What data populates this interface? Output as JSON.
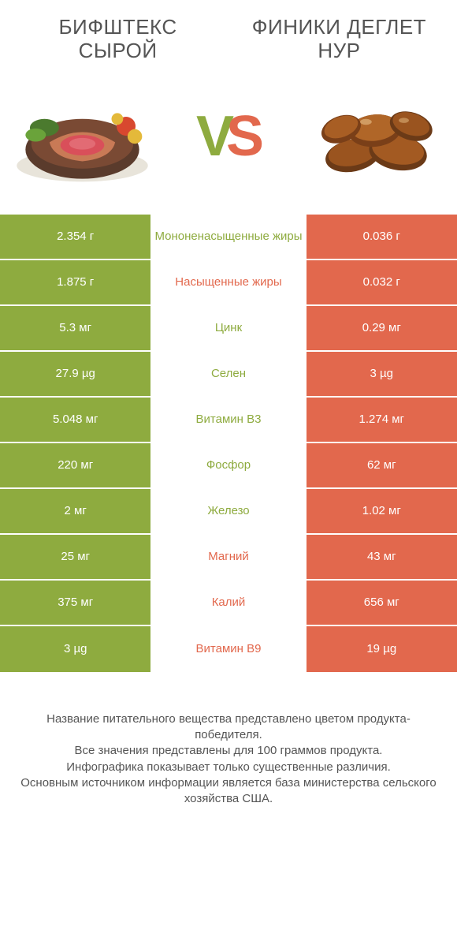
{
  "colors": {
    "left": "#8eab3f",
    "right": "#e2684d",
    "mid_bg": "#ffffff",
    "text_gray": "#555555",
    "white": "#ffffff"
  },
  "header": {
    "left_title": "Бифштекс сырой",
    "right_title": "Финики деглет нур"
  },
  "vs": {
    "v": "V",
    "s": "S"
  },
  "table": {
    "rows": [
      {
        "label": "Мононенасыщенные жиры",
        "left": "2.354 г",
        "right": "0.036 г",
        "winner": "left"
      },
      {
        "label": "Насыщенные жиры",
        "left": "1.875 г",
        "right": "0.032 г",
        "winner": "right"
      },
      {
        "label": "Цинк",
        "left": "5.3 мг",
        "right": "0.29 мг",
        "winner": "left"
      },
      {
        "label": "Селен",
        "left": "27.9 µg",
        "right": "3 µg",
        "winner": "left"
      },
      {
        "label": "Витамин B3",
        "left": "5.048 мг",
        "right": "1.274 мг",
        "winner": "left"
      },
      {
        "label": "Фосфор",
        "left": "220 мг",
        "right": "62 мг",
        "winner": "left"
      },
      {
        "label": "Железо",
        "left": "2 мг",
        "right": "1.02 мг",
        "winner": "left"
      },
      {
        "label": "Магний",
        "left": "25 мг",
        "right": "43 мг",
        "winner": "right"
      },
      {
        "label": "Калий",
        "left": "375 мг",
        "right": "656 мг",
        "winner": "right"
      },
      {
        "label": "Витамин B9",
        "left": "3 µg",
        "right": "19 µg",
        "winner": "right"
      }
    ]
  },
  "footer": {
    "l1": "Название питательного вещества представлено цветом продукта-победителя.",
    "l2": "Все значения представлены для 100 граммов продукта.",
    "l3": "Инфографика показывает только существенные различия.",
    "l4": "Основным источником информации является база министерства сельского хозяйства США."
  }
}
